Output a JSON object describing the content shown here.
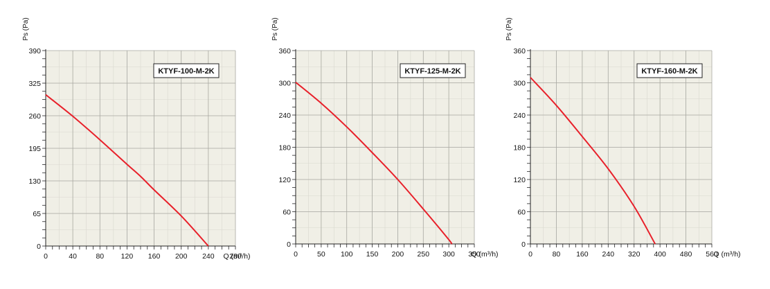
{
  "chart_data": [
    {
      "type": "line",
      "model_label": "KTYF-100-M-2K",
      "ylabel": "Ps (Pa)",
      "xlabel": "Q (m³/h)",
      "xlim": [
        0,
        280
      ],
      "ylim": [
        0,
        390
      ],
      "x_ticks": [
        0,
        40,
        80,
        120,
        160,
        200,
        240,
        280
      ],
      "y_ticks": [
        0,
        65,
        130,
        195,
        260,
        325,
        390
      ],
      "grid": true,
      "line_color": "#e8202a",
      "plot_bg": "#f0efe6",
      "series": [
        {
          "x": [
            0,
            40,
            80,
            120,
            140,
            160,
            200,
            240
          ],
          "y": [
            302,
            259,
            212,
            163,
            139,
            112,
            60,
            0
          ]
        }
      ]
    },
    {
      "type": "line",
      "model_label": "KTYF-125-M-2K",
      "ylabel": "Ps (Pa)",
      "xlabel": "Q (m³/h)",
      "xlim": [
        0,
        350
      ],
      "ylim": [
        0,
        360
      ],
      "x_ticks": [
        0,
        50,
        100,
        150,
        200,
        250,
        300,
        350
      ],
      "y_ticks": [
        0,
        60,
        120,
        180,
        240,
        300,
        360
      ],
      "grid": true,
      "line_color": "#e8202a",
      "plot_bg": "#f0efe6",
      "series": [
        {
          "x": [
            0,
            50,
            100,
            150,
            200,
            250,
            300,
            305
          ],
          "y": [
            301,
            262,
            218,
            170,
            120,
            65,
            8,
            0
          ]
        }
      ]
    },
    {
      "type": "line",
      "model_label": "KTYF-160-M-2K",
      "ylabel": "Ps (Pa)",
      "xlabel": "Q (m³/h)",
      "xlim": [
        0,
        560
      ],
      "ylim": [
        0,
        360
      ],
      "x_ticks": [
        0,
        80,
        160,
        240,
        320,
        400,
        480,
        560
      ],
      "y_ticks": [
        0,
        60,
        120,
        180,
        240,
        300,
        360
      ],
      "grid": true,
      "line_color": "#e8202a",
      "plot_bg": "#f0efe6",
      "series": [
        {
          "x": [
            0,
            80,
            160,
            240,
            320,
            385
          ],
          "y": [
            310,
            258,
            200,
            140,
            70,
            0
          ]
        }
      ]
    }
  ]
}
